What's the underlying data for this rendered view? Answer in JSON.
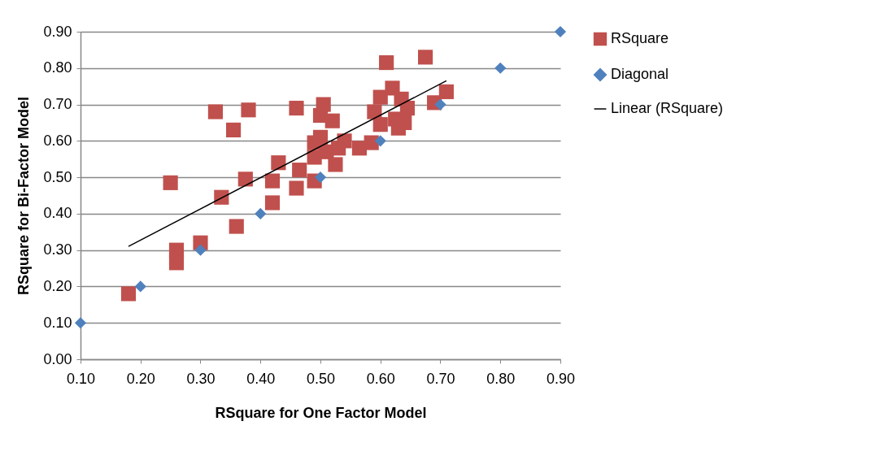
{
  "chart_data": {
    "type": "scatter",
    "xlabel": "RSquare for One Factor Model",
    "ylabel": "RSquare for Bi-Factor Model",
    "xlim": [
      0.1,
      0.9
    ],
    "xticks": [
      {
        "value": 0.1,
        "label": "0.10"
      },
      {
        "value": 0.2,
        "label": "0.20"
      },
      {
        "value": 0.3,
        "label": "0.30"
      },
      {
        "value": 0.4,
        "label": "0.40"
      },
      {
        "value": 0.5,
        "label": "0.50"
      },
      {
        "value": 0.6,
        "label": "0.60"
      },
      {
        "value": 0.7,
        "label": "0.70"
      },
      {
        "value": 0.8,
        "label": "0.80"
      },
      {
        "value": 0.9,
        "label": "0.90"
      }
    ],
    "ylim": [
      0,
      0.9
    ],
    "yticks": [
      {
        "value": 0,
        "label": "0.00"
      },
      {
        "value": 0.1,
        "label": "0.10"
      },
      {
        "value": 0.2,
        "label": "0.20"
      },
      {
        "value": 0.3,
        "label": "0.30"
      },
      {
        "value": 0.4,
        "label": "0.40"
      },
      {
        "value": 0.5,
        "label": "0.50"
      },
      {
        "value": 0.6,
        "label": "0.60"
      },
      {
        "value": 0.7,
        "label": "0.70"
      },
      {
        "value": 0.8,
        "label": "0.80"
      },
      {
        "value": 0.9,
        "label": "0.90"
      }
    ],
    "grid": "y",
    "legend": "right",
    "series": [
      {
        "name": "RSquare",
        "color": "#c0504d",
        "marker": "square",
        "x": [
          0.18,
          0.25,
          0.26,
          0.26,
          0.3,
          0.325,
          0.335,
          0.355,
          0.36,
          0.375,
          0.38,
          0.42,
          0.42,
          0.43,
          0.46,
          0.46,
          0.465,
          0.49,
          0.49,
          0.49,
          0.5,
          0.5,
          0.505,
          0.51,
          0.52,
          0.525,
          0.53,
          0.54,
          0.565,
          0.585,
          0.59,
          0.6,
          0.6,
          0.61,
          0.62,
          0.625,
          0.63,
          0.635,
          0.64,
          0.645,
          0.675,
          0.69,
          0.71
        ],
        "values": [
          0.18,
          0.485,
          0.3,
          0.265,
          0.32,
          0.68,
          0.445,
          0.63,
          0.365,
          0.495,
          0.685,
          0.49,
          0.43,
          0.54,
          0.69,
          0.47,
          0.52,
          0.49,
          0.555,
          0.595,
          0.61,
          0.67,
          0.7,
          0.57,
          0.655,
          0.535,
          0.58,
          0.6,
          0.58,
          0.595,
          0.68,
          0.72,
          0.645,
          0.815,
          0.745,
          0.66,
          0.635,
          0.715,
          0.65,
          0.69,
          0.83,
          0.705,
          0.735
        ]
      },
      {
        "name": "Diagonal",
        "color": "#4f81bd",
        "marker": "diamond",
        "x": [
          0.1,
          0.2,
          0.3,
          0.4,
          0.5,
          0.6,
          0.7,
          0.8,
          0.9
        ],
        "values": [
          0.1,
          0.2,
          0.3,
          0.4,
          0.5,
          0.6,
          0.7,
          0.8,
          0.9
        ]
      },
      {
        "name": "Linear (RSquare)",
        "type": "line",
        "color": "#000000",
        "marker": "none",
        "line_style": "solid",
        "x": [
          0.18,
          0.71
        ],
        "values": [
          0.31,
          0.765
        ]
      }
    ]
  }
}
